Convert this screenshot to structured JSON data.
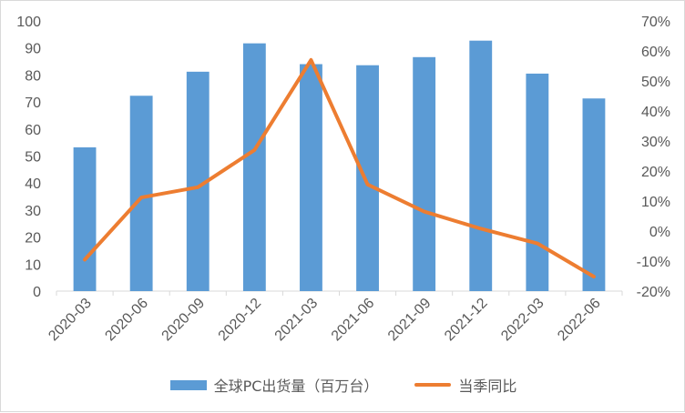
{
  "colors": {
    "bar": "#5b9bd5",
    "line": "#ed7d31",
    "grid": "#d9d9d9",
    "axis_text": "#595959"
  },
  "legend": {
    "bar_label": "全球PC出货量（百万台）",
    "line_label": "当季同比"
  },
  "chart_data": {
    "type": "bar",
    "categories": [
      "2020-03",
      "2020-06",
      "2020-09",
      "2020-12",
      "2021-03",
      "2021-06",
      "2021-09",
      "2021-12",
      "2022-03",
      "2022-06"
    ],
    "series": [
      {
        "name": "全球PC出货量（百万台）",
        "type": "bar",
        "axis": "left",
        "values": [
          53.2,
          72.3,
          81.2,
          91.7,
          84.0,
          83.6,
          86.6,
          92.7,
          80.5,
          71.3
        ]
      },
      {
        "name": "当季同比",
        "type": "line",
        "axis": "right",
        "values": [
          -9.5,
          11.2,
          14.6,
          27.0,
          57.0,
          15.5,
          6.5,
          0.8,
          -4.1,
          -15.2
        ]
      }
    ],
    "y_left": {
      "ylim": [
        0,
        100
      ],
      "ticks": [
        "0",
        "10",
        "20",
        "30",
        "40",
        "50",
        "60",
        "70",
        "80",
        "90",
        "100"
      ]
    },
    "y_right": {
      "ylim": [
        -20,
        70
      ],
      "ticks": [
        "-20%",
        "-10%",
        "0%",
        "10%",
        "20%",
        "30%",
        "40%",
        "50%",
        "60%",
        "70%"
      ]
    },
    "grid": false,
    "legend_position": "bottom"
  }
}
